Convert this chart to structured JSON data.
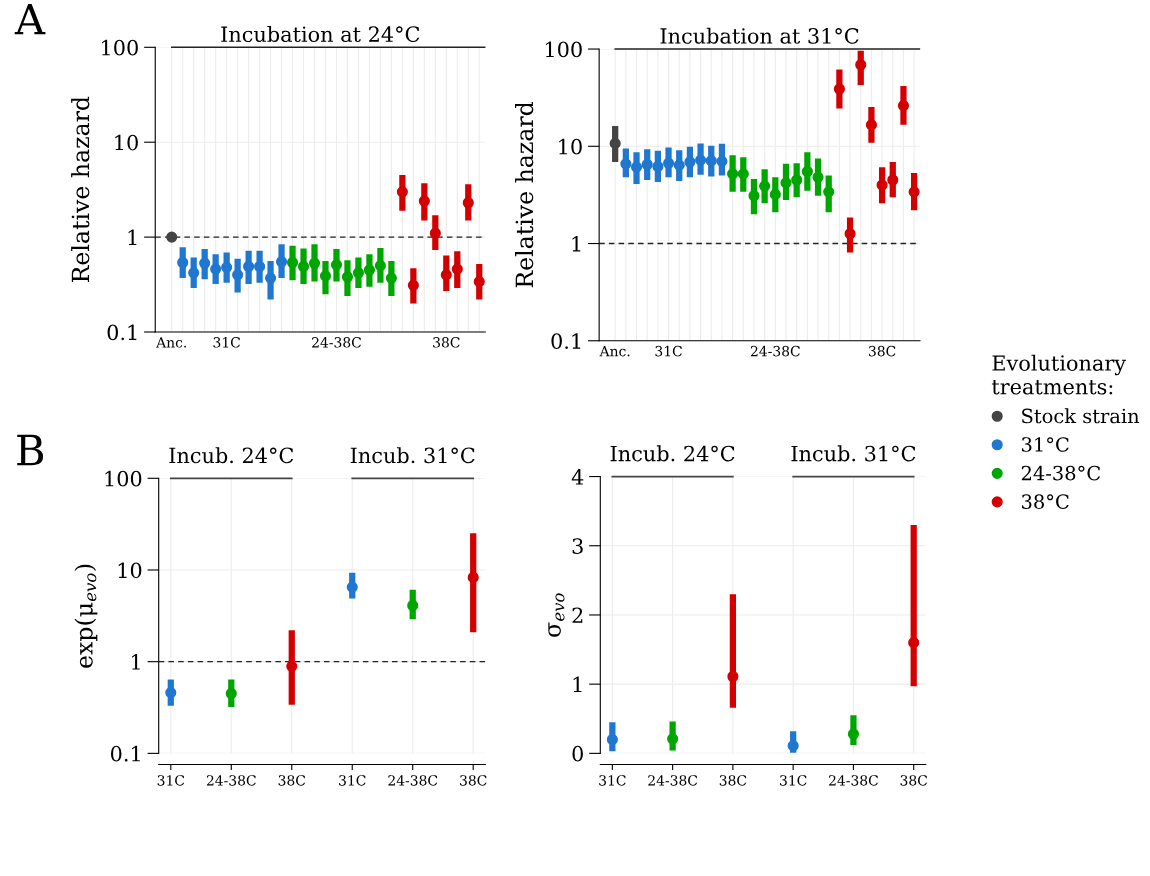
{
  "chart_data": [
    {
      "type": "scatter",
      "title": "Incubation at 24°C",
      "ylabel": "Relative hazard",
      "annotations": [
        "A"
      ],
      "log": "y",
      "grid": true,
      "marker": "circle",
      "categories": [
        "Anc.",
        null,
        null,
        null,
        null,
        "31C",
        null,
        null,
        null,
        null,
        null,
        null,
        null,
        null,
        null,
        "24-38C",
        null,
        null,
        null,
        null,
        null,
        null,
        null,
        null,
        null,
        "38C",
        null,
        null,
        null
      ],
      "ylim": [
        0.1,
        100
      ],
      "yticks": [
        0.1,
        1,
        10,
        100
      ],
      "ref_lines": [
        {
          "axis": "y",
          "value": 1,
          "line_style": "dashed",
          "color": "#222222"
        }
      ],
      "series": [
        {
          "color": "#444444",
          "values": [
            1,
            null,
            null,
            null,
            null,
            null,
            null,
            null,
            null,
            null,
            null,
            null,
            null,
            null,
            null,
            null,
            null,
            null,
            null,
            null,
            null,
            null,
            null,
            null,
            null,
            null,
            null,
            null,
            null
          ],
          "errors": [
            null,
            null,
            null,
            null,
            null,
            null,
            null,
            null,
            null,
            null,
            null,
            null,
            null,
            null,
            null,
            null,
            null,
            null,
            null,
            null,
            null,
            null,
            null,
            null,
            null,
            null,
            null,
            null,
            null
          ]
        },
        {
          "color": "#1f77d0",
          "values": [
            null,
            0.54,
            0.42,
            0.53,
            0.46,
            0.48,
            0.4,
            0.49,
            0.49,
            0.37,
            0.55,
            null,
            null,
            null,
            null,
            null,
            null,
            null,
            null,
            null,
            null,
            null,
            null,
            null,
            null,
            null,
            null,
            null,
            null
          ],
          "errors": [
            null,
            [
              0.37,
              0.78
            ],
            [
              0.29,
              0.61
            ],
            [
              0.36,
              0.75
            ],
            [
              0.32,
              0.66
            ],
            [
              0.33,
              0.69
            ],
            [
              0.26,
              0.59
            ],
            [
              0.32,
              0.72
            ],
            [
              0.33,
              0.72
            ],
            [
              0.22,
              0.56
            ],
            [
              0.37,
              0.84
            ],
            null,
            null,
            null,
            null,
            null,
            null,
            null,
            null,
            null,
            null,
            null,
            null,
            null,
            null,
            null,
            null,
            null,
            null
          ]
        },
        {
          "color": "#00a600",
          "values": [
            null,
            null,
            null,
            null,
            null,
            null,
            null,
            null,
            null,
            null,
            null,
            0.54,
            0.49,
            0.53,
            0.39,
            0.51,
            0.38,
            0.42,
            0.45,
            0.5,
            0.37,
            null,
            null,
            null,
            null,
            null,
            null,
            null,
            null
          ],
          "errors": [
            null,
            null,
            null,
            null,
            null,
            null,
            null,
            null,
            null,
            null,
            null,
            [
              0.35,
              0.81
            ],
            [
              0.32,
              0.76
            ],
            [
              0.34,
              0.84
            ],
            [
              0.25,
              0.56
            ],
            [
              0.34,
              0.75
            ],
            [
              0.24,
              0.57
            ],
            [
              0.29,
              0.61
            ],
            [
              0.3,
              0.66
            ],
            [
              0.33,
              0.77
            ],
            [
              0.24,
              0.56
            ],
            null,
            null,
            null,
            null,
            null,
            null,
            null,
            null
          ]
        },
        {
          "color": "#d40000",
          "values": [
            null,
            null,
            null,
            null,
            null,
            null,
            null,
            null,
            null,
            null,
            null,
            null,
            null,
            null,
            null,
            null,
            null,
            null,
            null,
            null,
            null,
            3.0,
            0.31,
            2.4,
            1.1,
            0.4,
            0.46,
            2.3,
            0.34
          ],
          "errors": [
            null,
            null,
            null,
            null,
            null,
            null,
            null,
            null,
            null,
            null,
            null,
            null,
            null,
            null,
            null,
            null,
            null,
            null,
            null,
            null,
            null,
            [
              1.9,
              4.5
            ],
            [
              0.2,
              0.47
            ],
            [
              1.5,
              3.7
            ],
            [
              0.73,
              1.7
            ],
            [
              0.27,
              0.64
            ],
            [
              0.29,
              0.71
            ],
            [
              1.5,
              3.6
            ],
            [
              0.22,
              0.52
            ]
          ]
        }
      ]
    },
    {
      "type": "scatter",
      "title": "Incubation at 31°C",
      "ylabel": "Relative hazard",
      "log": "y",
      "grid": true,
      "marker": "circle",
      "legend": "right",
      "legend_title": "Evolutionary\ntreatments:",
      "categories": [
        "Anc.",
        null,
        null,
        null,
        null,
        "31C",
        null,
        null,
        null,
        null,
        null,
        null,
        null,
        null,
        null,
        "24-38C",
        null,
        null,
        null,
        null,
        null,
        null,
        null,
        null,
        null,
        "38C",
        null,
        null,
        null
      ],
      "ylim": [
        0.1,
        100
      ],
      "yticks": [
        0.1,
        1,
        10,
        100
      ],
      "ref_lines": [
        {
          "axis": "y",
          "value": 1,
          "line_style": "dashed",
          "color": "#222222"
        }
      ],
      "series": [
        {
          "name": "Stock strain",
          "color": "#444444",
          "values": [
            10.7,
            null,
            null,
            null,
            null,
            null,
            null,
            null,
            null,
            null,
            null,
            null,
            null,
            null,
            null,
            null,
            null,
            null,
            null,
            null,
            null,
            null,
            null,
            null,
            null,
            null,
            null,
            null,
            null
          ],
          "errors": [
            [
              6.9,
              16.2
            ],
            null,
            null,
            null,
            null,
            null,
            null,
            null,
            null,
            null,
            null,
            null,
            null,
            null,
            null,
            null,
            null,
            null,
            null,
            null,
            null,
            null,
            null,
            null,
            null,
            null,
            null,
            null,
            null
          ]
        },
        {
          "name": "31°C",
          "color": "#1f77d0",
          "values": [
            null,
            6.6,
            6.1,
            6.5,
            6.2,
            6.7,
            6.4,
            6.9,
            7.2,
            7.1,
            7.0,
            null,
            null,
            null,
            null,
            null,
            null,
            null,
            null,
            null,
            null,
            null,
            null,
            null,
            null,
            null,
            null,
            null,
            null
          ],
          "errors": [
            null,
            [
              4.8,
              9.5
            ],
            [
              4.1,
              8.7
            ],
            [
              4.5,
              9.3
            ],
            [
              4.3,
              9.0
            ],
            [
              4.8,
              9.7
            ],
            [
              4.4,
              9.1
            ],
            [
              4.8,
              9.9
            ],
            [
              5.1,
              10.7
            ],
            [
              4.9,
              10.1
            ],
            [
              5.0,
              10.6
            ],
            null,
            null,
            null,
            null,
            null,
            null,
            null,
            null,
            null,
            null,
            null,
            null,
            null,
            null,
            null,
            null,
            null,
            null
          ]
        },
        {
          "name": "24-38°C",
          "color": "#00a600",
          "values": [
            null,
            null,
            null,
            null,
            null,
            null,
            null,
            null,
            null,
            null,
            null,
            5.2,
            5.2,
            3.1,
            3.9,
            3.2,
            4.2,
            4.5,
            5.5,
            4.8,
            3.4,
            null,
            null,
            null,
            null,
            null,
            null,
            null,
            null
          ],
          "errors": [
            null,
            null,
            null,
            null,
            null,
            null,
            null,
            null,
            null,
            null,
            null,
            [
              3.4,
              8.1
            ],
            [
              3.4,
              7.7
            ],
            [
              2.0,
              4.6
            ],
            [
              2.6,
              5.8
            ],
            [
              2.1,
              4.8
            ],
            [
              2.8,
              6.6
            ],
            [
              3.0,
              6.7
            ],
            [
              3.5,
              8.7
            ],
            [
              3.1,
              7.5
            ],
            [
              2.1,
              5.0
            ],
            null,
            null,
            null,
            null,
            null,
            null,
            null,
            null
          ]
        },
        {
          "name": "38°C",
          "color": "#d40000",
          "values": [
            null,
            null,
            null,
            null,
            null,
            null,
            null,
            null,
            null,
            null,
            null,
            null,
            null,
            null,
            null,
            null,
            null,
            null,
            null,
            null,
            null,
            38.8,
            1.26,
            69,
            16.6,
            4.0,
            4.5,
            26.2,
            3.4
          ],
          "errors": [
            null,
            null,
            null,
            null,
            null,
            null,
            null,
            null,
            null,
            null,
            null,
            null,
            null,
            null,
            null,
            null,
            null,
            null,
            null,
            null,
            null,
            [
              24.4,
              61.8
            ],
            [
              0.81,
              1.85
            ],
            [
              42.7,
              96
            ],
            [
              10.9,
              25.4
            ],
            [
              2.6,
              6.1
            ],
            [
              3.0,
              6.9
            ],
            [
              16.7,
              41.7
            ],
            [
              2.2,
              5.3
            ]
          ]
        }
      ]
    },
    {
      "type": "scatter",
      "ylabel": "exp(μ$_{evo}$)",
      "annotations": [
        "B",
        "Incub. 24°C",
        "Incub. 31°C"
      ],
      "log": "y",
      "grid": true,
      "marker": "circle",
      "categories": [
        "31C",
        "24-38C",
        "38C",
        "31C",
        "24-38C",
        "38C"
      ],
      "ylim": [
        0.1,
        100
      ],
      "yticks": [
        0.1,
        1,
        10,
        100
      ],
      "ref_lines": [
        {
          "axis": "y",
          "value": 1,
          "line_style": "dashed",
          "color": "#222222"
        }
      ],
      "series": [
        {
          "color": "#1f77d0",
          "values": [
            0.46,
            null,
            null,
            6.5,
            null,
            null
          ],
          "errors": [
            [
              0.33,
              0.64
            ],
            null,
            null,
            [
              4.9,
              9.3
            ],
            null,
            null
          ]
        },
        {
          "color": "#00a600",
          "values": [
            null,
            0.45,
            null,
            null,
            4.1,
            null
          ],
          "errors": [
            null,
            [
              0.32,
              0.64
            ],
            null,
            null,
            [
              2.9,
              6.1
            ],
            null
          ]
        },
        {
          "color": "#d40000",
          "values": [
            null,
            null,
            0.89,
            null,
            null,
            8.3
          ],
          "errors": [
            null,
            null,
            [
              0.34,
              2.2
            ],
            null,
            null,
            [
              2.1,
              25.1
            ]
          ]
        }
      ]
    },
    {
      "type": "scatter",
      "ylabel": "σ$_{evo}$",
      "annotations": [
        "Incub. 24°C",
        "Incub. 31°C"
      ],
      "grid": true,
      "marker": "circle",
      "categories": [
        "31C",
        "24-38C",
        "38C",
        "31C",
        "24-38C",
        "38C"
      ],
      "ylim": [
        0,
        4
      ],
      "yticks": [
        0,
        1,
        2,
        3,
        4
      ],
      "series": [
        {
          "color": "#1f77d0",
          "values": [
            0.2,
            null,
            null,
            0.11,
            null,
            null
          ],
          "errors": [
            [
              0.03,
              0.45
            ],
            null,
            null,
            [
              0.01,
              0.32
            ],
            null,
            null
          ]
        },
        {
          "color": "#00a600",
          "values": [
            null,
            0.21,
            null,
            null,
            0.28,
            null
          ],
          "errors": [
            null,
            [
              0.04,
              0.46
            ],
            null,
            null,
            [
              0.12,
              0.55
            ],
            null
          ]
        },
        {
          "color": "#d40000",
          "values": [
            null,
            null,
            1.11,
            null,
            null,
            1.6
          ],
          "errors": [
            null,
            null,
            [
              0.66,
              2.3
            ],
            null,
            null,
            [
              0.97,
              3.3
            ]
          ]
        }
      ]
    }
  ]
}
